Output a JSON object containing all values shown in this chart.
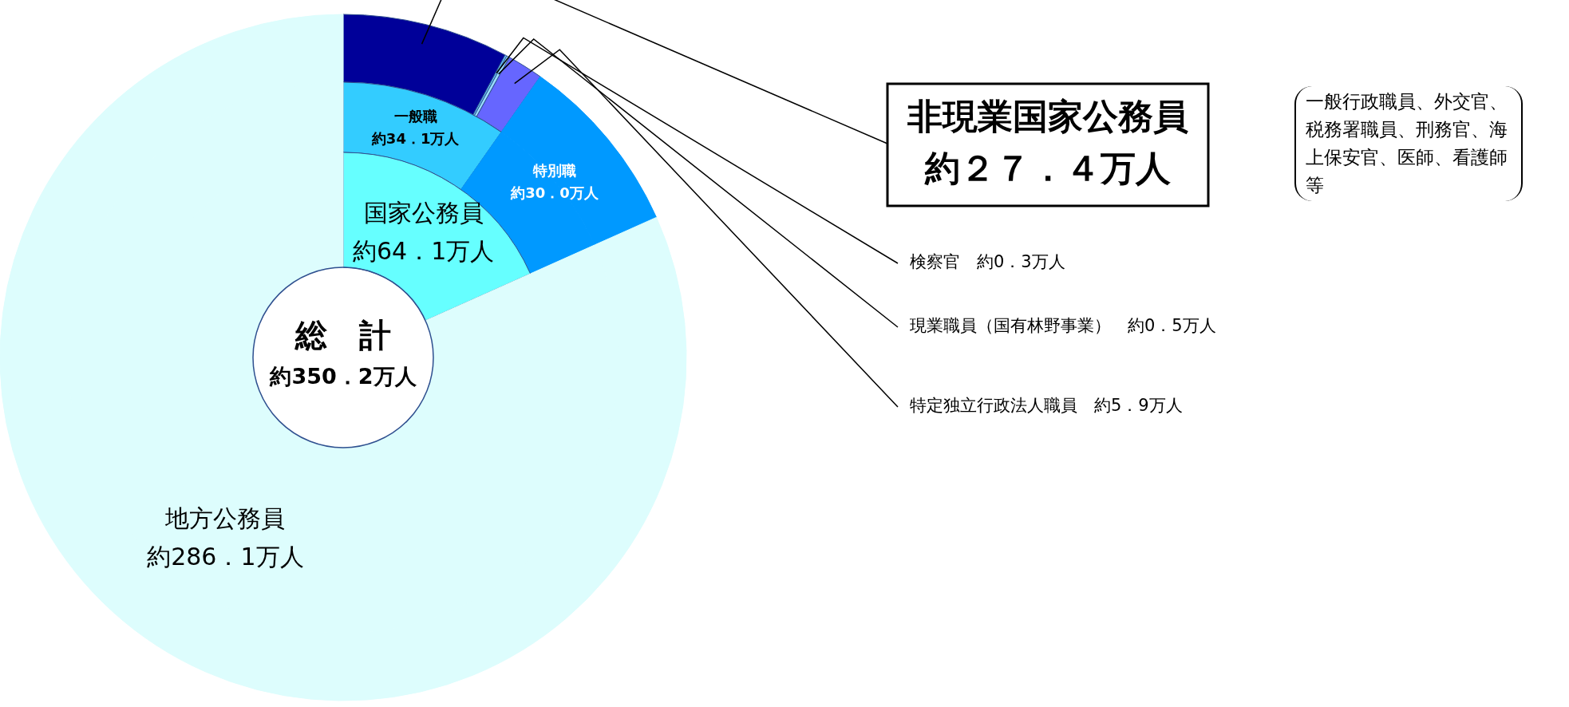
{
  "chart_data": [
    {
      "type": "donut",
      "title": "総　計",
      "annotations": [
        "約350．2万人",
        "一般行政職員、外交官、税務署職員、刑務官、海上保安官、医師、看護師等"
      ],
      "categories": [
        "国家公務員",
        "地方公務員"
      ],
      "values": [
        64.1,
        286.1
      ],
      "colors": [
        "#66ffff",
        "#ddfdfd"
      ],
      "value_labels": [
        "約64．1万人",
        "約286．1万人"
      ],
      "legend": false
    },
    {
      "type": "donut",
      "categories": [
        "一般職",
        "特別職",
        null
      ],
      "values": [
        34.1,
        30.0,
        286.1
      ],
      "colors": [
        "#33ccff",
        "#0099ff",
        "#ddfdfd"
      ],
      "value_labels": [
        "約34．1万人",
        "約30．0万人",
        null
      ],
      "legend": false
    },
    {
      "type": "donut",
      "categories": [
        "非現業国家公務員",
        "検察官",
        "現業職員（国有林野事業）",
        "特定独立行政法人職員",
        null,
        null
      ],
      "values": [
        27.4,
        0.3,
        0.5,
        5.9,
        30.0,
        286.1
      ],
      "colors": [
        "#000099",
        "#66ccff",
        "#99ddff",
        "#6666ff",
        "#0099ff",
        "#ddfdfd"
      ],
      "value_labels": [
        "約２７．４万人",
        "約0．3万人",
        "約0．5万人",
        "約5．9万人",
        null,
        null
      ],
      "legend": false
    }
  ]
}
